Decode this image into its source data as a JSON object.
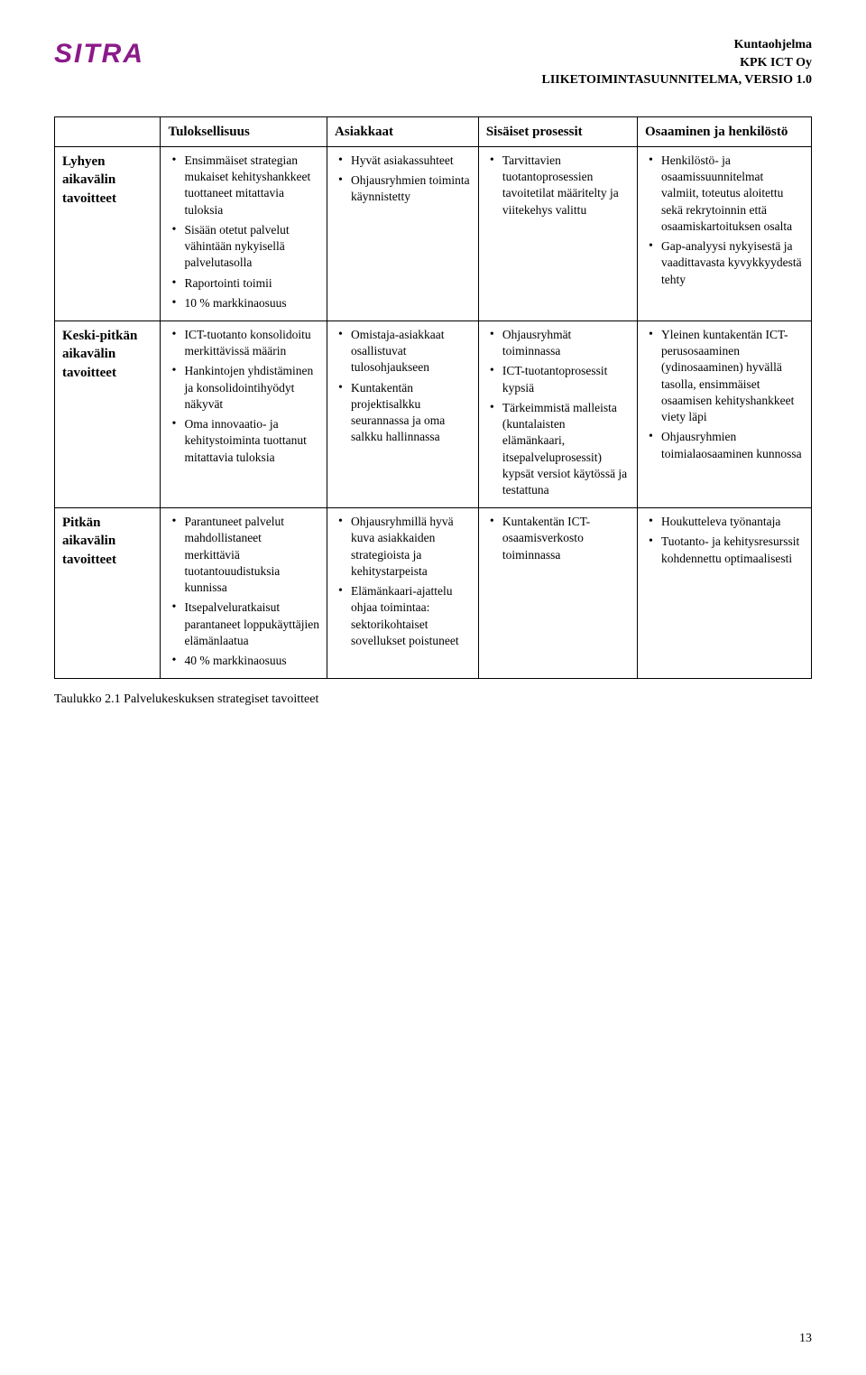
{
  "header": {
    "logo_text": "SITRA",
    "doc_title1": "Kuntaohjelma",
    "doc_title2": "KPK ICT Oy",
    "doc_title3": "LIIKETOIMINTASUUNNITELMA, VERSIO 1.0"
  },
  "table": {
    "col_headers": [
      "",
      "Tuloksellisuus",
      "Asiakkaat",
      "Sisäiset prosessit",
      "Osaaminen ja henkilöstö"
    ],
    "rows": [
      {
        "label": "Lyhyen aikavälin tavoitteet",
        "c1": [
          "Ensimmäiset strategian mukaiset kehityshankkeet tuottaneet mitattavia tuloksia",
          "Sisään otetut palvelut vähintään nykyisellä palvelutasolla",
          "Raportointi toimii",
          "10 % markkinaosuus"
        ],
        "c2": [
          "Hyvät asiakassuhteet",
          "Ohjausryhmien toiminta käynnistetty"
        ],
        "c3": [
          "Tarvittavien tuotantoprosessien tavoitetilat määritelty ja viitekehys valittu"
        ],
        "c4": [
          "Henkilöstö- ja osaamissuunnitelmat valmiit, toteutus aloitettu sekä rekrytoinnin että osaamiskartoituksen osalta",
          "Gap-analyysi nykyisestä ja vaadittavasta kyvykkyydestä tehty"
        ]
      },
      {
        "label": "Keski-pitkän aikavälin tavoitteet",
        "c1": [
          "ICT-tuotanto konsolidoitu merkittävissä määrin",
          "Hankintojen yhdistäminen ja konsolidointihyödyt näkyvät",
          "Oma innovaatio- ja kehitystoiminta tuottanut mitattavia tuloksia"
        ],
        "c2": [
          "Omistaja-asiakkaat osallistuvat tulosohjaukseen",
          "Kuntakentän projektisalkku seurannassa ja oma salkku hallinnassa"
        ],
        "c3": [
          "Ohjausryhmät toiminnassa",
          "ICT-tuotantoprosessit kypsiä",
          "Tärkeimmistä malleista (kuntalaisten elämänkaari, itsepalveluprosessit) kypsät versiot käytössä ja testattuna"
        ],
        "c4": [
          "Yleinen kuntakentän ICT-perusosaaminen (ydinosaaminen) hyvällä tasolla, ensimmäiset osaamisen kehityshankkeet viety läpi",
          "Ohjausryhmien toimialaosaaminen kunnossa"
        ]
      },
      {
        "label": "Pitkän aikavälin tavoitteet",
        "c1": [
          "Parantuneet palvelut mahdollistaneet merkittäviä tuotantouudistuksia kunnissa",
          "Itsepalveluratkaisut parantaneet loppukäyttäjien elämänlaatua",
          "40 % markkinaosuus"
        ],
        "c2": [
          "Ohjausryhmillä hyvä kuva asiakkaiden strategioista ja kehitystarpeista",
          "Elämänkaari-ajattelu ohjaa toimintaa: sektorikohtaiset sovellukset poistuneet"
        ],
        "c3": [
          "Kuntakentän ICT-osaamisverkosto toiminnassa"
        ],
        "c4": [
          "Houkutteleva työnantaja",
          "Tuotanto- ja kehitysresurssit kohdennettu optimaalisesti"
        ]
      }
    ]
  },
  "caption": "Taulukko 2.1 Palvelukeskuksen strategiset tavoitteet",
  "page_number": "13",
  "colors": {
    "brand": "#8b1a89",
    "border": "#000000",
    "text": "#000000",
    "bg": "#ffffff"
  }
}
